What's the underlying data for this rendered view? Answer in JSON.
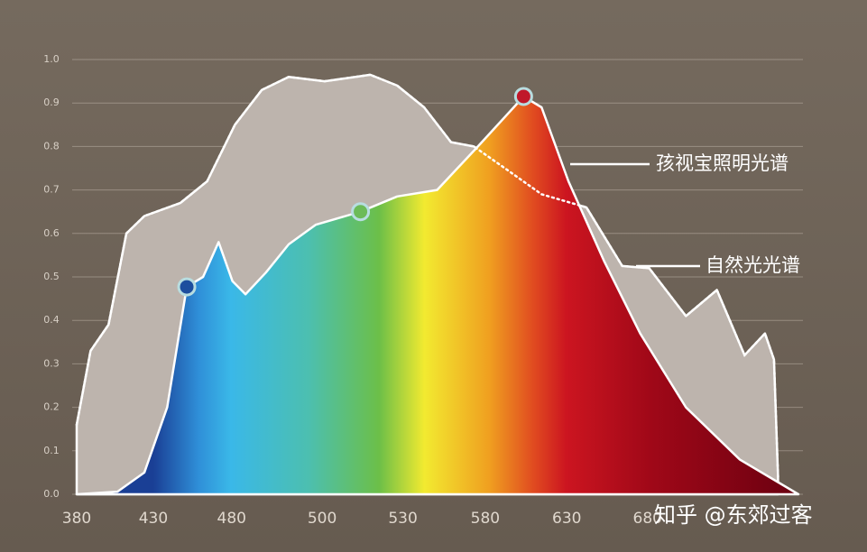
{
  "chart_data": {
    "type": "area",
    "xlim": [
      0,
      8.85
    ],
    "xticks": [
      {
        "value": 0,
        "label": "380"
      },
      {
        "value": 0.94,
        "label": "430"
      },
      {
        "value": 1.9,
        "label": "480"
      },
      {
        "value": 3.01,
        "label": "500"
      },
      {
        "value": 4.0,
        "label": "530"
      },
      {
        "value": 5.01,
        "label": "580"
      },
      {
        "value": 6.01,
        "label": "630"
      },
      {
        "value": 7.0,
        "label": "680"
      }
    ],
    "ylim": [
      0,
      1
    ],
    "yticks": [
      {
        "value": 0,
        "label": "0.0"
      },
      {
        "value": 0.1,
        "label": "0.1"
      },
      {
        "value": 0.2,
        "label": "0.2"
      },
      {
        "value": 0.3,
        "label": "0.3"
      },
      {
        "value": 0.4,
        "label": "0.4"
      },
      {
        "value": 0.5,
        "label": "0.5"
      },
      {
        "value": 0.6,
        "label": "0.6"
      },
      {
        "value": 0.7,
        "label": "0.7"
      },
      {
        "value": 0.8,
        "label": "0.8"
      },
      {
        "value": 0.9,
        "label": "0.9"
      },
      {
        "value": 1,
        "label": "1.0"
      }
    ],
    "grid": true,
    "series": [
      {
        "name": "自然光光谱",
        "color": "#bdb4ad",
        "x": [
          0,
          0.17,
          0.39,
          0.61,
          0.83,
          1.27,
          1.6,
          1.94,
          2.27,
          2.6,
          3.04,
          3.6,
          3.93,
          4.26,
          4.59,
          4.87,
          5.25,
          5.7,
          6.25,
          6.69,
          7.02,
          7.47,
          7.85,
          8.19,
          8.44,
          8.55,
          8.6
        ],
        "values": [
          0.16,
          0.33,
          0.39,
          0.6,
          0.64,
          0.67,
          0.72,
          0.85,
          0.93,
          0.96,
          0.95,
          0.965,
          0.94,
          0.89,
          0.81,
          0.8,
          0.75,
          0.69,
          0.66,
          0.525,
          0.52,
          0.41,
          0.47,
          0.32,
          0.37,
          0.31,
          0.04
        ]
      },
      {
        "name": "孩视宝照明光谱",
        "color": "gradient",
        "x": [
          0,
          0.5,
          0.83,
          1.11,
          1.35,
          1.55,
          1.74,
          1.91,
          2.07,
          2.32,
          2.6,
          2.93,
          3.48,
          3.93,
          4.42,
          4.92,
          5.48,
          5.7,
          6.03,
          6.47,
          6.91,
          7.47,
          8.13,
          8.85
        ],
        "values": [
          0,
          0.006,
          0.05,
          0.2,
          0.477,
          0.5,
          0.58,
          0.49,
          0.46,
          0.51,
          0.575,
          0.62,
          0.65,
          0.685,
          0.7,
          0.8,
          0.915,
          0.89,
          0.72,
          0.535,
          0.37,
          0.2,
          0.08,
          0
        ]
      }
    ],
    "markers": [
      {
        "series": 1,
        "index": 4,
        "color": "#1d4e9e"
      },
      {
        "series": 1,
        "index": 12,
        "color": "#6cbb58"
      },
      {
        "series": 1,
        "index": 16,
        "color": "#c0182a"
      }
    ],
    "watermark": "知乎 @东郊过客"
  }
}
